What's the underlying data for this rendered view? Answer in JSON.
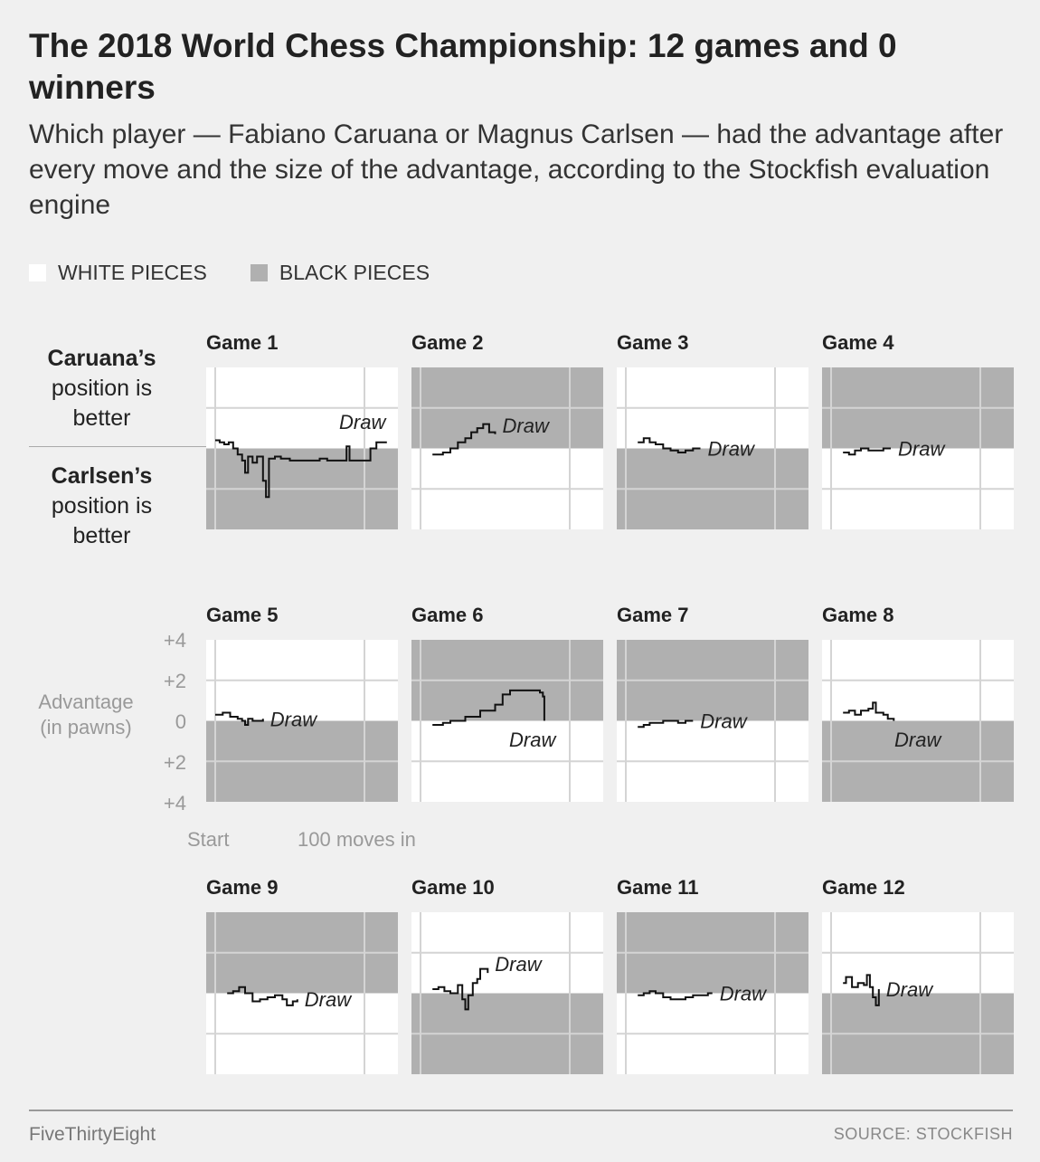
{
  "title": "The 2018 World Chess Championship: 12 games and 0 winners",
  "subtitle": "Which player — Fabiano Caruana or Magnus Carlsen — had the advantage after every move and the size of the advantage, according to the Stockfish evaluation engine",
  "legend": {
    "white_label": "WHITE PIECES",
    "black_label": "BLACK PIECES",
    "white_color": "#ffffff",
    "black_color": "#b0b0b0"
  },
  "side_labels": {
    "caruana_name": "Caruana’s",
    "caruana_rest_1": "position is",
    "caruana_rest_2": "better",
    "carlsen_name": "Carlsen’s",
    "carlsen_rest_1": "position is",
    "carlsen_rest_2": "better"
  },
  "axis": {
    "label_line1": "Advantage",
    "label_line2": "(in pawns)",
    "y_ticks": [
      "+4",
      "+2",
      "0",
      "+2",
      "+4"
    ],
    "x_start": "Start",
    "x_100": "100 moves in"
  },
  "footer": {
    "brand": "FiveThirtyEight",
    "source": "SOURCE: STOCKFISH"
  },
  "chart_data": {
    "type": "line",
    "title": "The 2018 World Chess Championship: 12 games and 0 winners",
    "xlabel": "",
    "ylabel": "Advantage (in pawns)",
    "xlim": [
      0,
      120
    ],
    "ylim": [
      -4,
      4
    ],
    "x_ticks": [
      "Start",
      "100 moves in"
    ],
    "y_ticks": [
      "+4",
      "+2",
      "0",
      "+2",
      "+4"
    ],
    "grid": true,
    "note": "positive y = Caruana's position is better; negative y = Carlsen's position is better",
    "games": [
      {
        "name": "Game 1",
        "caruana_pieces": "white",
        "result": "Draw",
        "points": [
          [
            0,
            0.4
          ],
          [
            3,
            0.3
          ],
          [
            6,
            0.2
          ],
          [
            9,
            0.3
          ],
          [
            12,
            0
          ],
          [
            15,
            -0.3
          ],
          [
            18,
            -0.6
          ],
          [
            20,
            -1.2
          ],
          [
            22,
            -0.4
          ],
          [
            25,
            -0.7
          ],
          [
            28,
            -0.4
          ],
          [
            32,
            -1.6
          ],
          [
            34,
            -2.4
          ],
          [
            36,
            -0.5
          ],
          [
            40,
            -0.4
          ],
          [
            44,
            -0.5
          ],
          [
            50,
            -0.6
          ],
          [
            60,
            -0.6
          ],
          [
            70,
            -0.5
          ],
          [
            75,
            -0.6
          ],
          [
            85,
            -0.6
          ],
          [
            88,
            0.1
          ],
          [
            90,
            -0.6
          ],
          [
            100,
            -0.6
          ],
          [
            104,
            0.0
          ],
          [
            108,
            0.3
          ],
          [
            115,
            0.3
          ]
        ]
      },
      {
        "name": "Game 2",
        "caruana_pieces": "black",
        "result": "Draw",
        "points": [
          [
            8,
            -0.3
          ],
          [
            15,
            -0.2
          ],
          [
            20,
            0.0
          ],
          [
            25,
            0.3
          ],
          [
            30,
            0.5
          ],
          [
            34,
            0.8
          ],
          [
            38,
            1.0
          ],
          [
            42,
            1.2
          ],
          [
            46,
            0.8
          ],
          [
            50,
            0.7
          ]
        ]
      },
      {
        "name": "Game 3",
        "caruana_pieces": "white",
        "result": "Draw",
        "points": [
          [
            8,
            0.3
          ],
          [
            12,
            0.5
          ],
          [
            16,
            0.3
          ],
          [
            20,
            0.2
          ],
          [
            25,
            0.0
          ],
          [
            30,
            -0.1
          ],
          [
            35,
            -0.2
          ],
          [
            40,
            -0.1
          ],
          [
            45,
            0.0
          ],
          [
            50,
            0.0
          ]
        ]
      },
      {
        "name": "Game 4",
        "caruana_pieces": "black",
        "result": "Draw",
        "points": [
          [
            8,
            -0.2
          ],
          [
            12,
            -0.3
          ],
          [
            16,
            -0.1
          ],
          [
            20,
            0.0
          ],
          [
            25,
            -0.1
          ],
          [
            30,
            -0.1
          ],
          [
            35,
            0.0
          ],
          [
            40,
            0.0
          ]
        ]
      },
      {
        "name": "Game 5",
        "caruana_pieces": "white",
        "result": "Draw",
        "points": [
          [
            0,
            0.3
          ],
          [
            5,
            0.4
          ],
          [
            10,
            0.2
          ],
          [
            15,
            0.1
          ],
          [
            18,
            0.0
          ],
          [
            20,
            -0.2
          ],
          [
            22,
            0.1
          ],
          [
            25,
            0.0
          ],
          [
            32,
            0.1
          ]
        ]
      },
      {
        "name": "Game 6",
        "caruana_pieces": "black",
        "result": "Draw",
        "points": [
          [
            8,
            -0.2
          ],
          [
            15,
            -0.1
          ],
          [
            20,
            0.0
          ],
          [
            30,
            0.2
          ],
          [
            40,
            0.5
          ],
          [
            50,
            0.8
          ],
          [
            55,
            1.3
          ],
          [
            60,
            1.5
          ],
          [
            70,
            1.5
          ],
          [
            80,
            1.4
          ],
          [
            82,
            1.2
          ],
          [
            83,
            0.0
          ]
        ]
      },
      {
        "name": "Game 7",
        "caruana_pieces": "black",
        "result": "Draw",
        "points": [
          [
            8,
            -0.3
          ],
          [
            12,
            -0.2
          ],
          [
            16,
            -0.1
          ],
          [
            20,
            -0.1
          ],
          [
            25,
            0.0
          ],
          [
            30,
            0.0
          ],
          [
            35,
            -0.1
          ],
          [
            40,
            0.0
          ],
          [
            45,
            0.0
          ]
        ]
      },
      {
        "name": "Game 8",
        "caruana_pieces": "white",
        "result": "Draw",
        "points": [
          [
            8,
            0.4
          ],
          [
            12,
            0.5
          ],
          [
            16,
            0.3
          ],
          [
            20,
            0.5
          ],
          [
            25,
            0.6
          ],
          [
            28,
            0.9
          ],
          [
            30,
            0.4
          ],
          [
            35,
            0.3
          ],
          [
            38,
            0.1
          ],
          [
            42,
            0.0
          ]
        ]
      },
      {
        "name": "Game 9",
        "caruana_pieces": "black",
        "result": "Draw",
        "points": [
          [
            8,
            0.0
          ],
          [
            12,
            0.1
          ],
          [
            16,
            0.3
          ],
          [
            20,
            0.0
          ],
          [
            25,
            -0.4
          ],
          [
            30,
            -0.3
          ],
          [
            35,
            -0.2
          ],
          [
            40,
            -0.1
          ],
          [
            45,
            -0.3
          ],
          [
            48,
            -0.6
          ],
          [
            52,
            -0.4
          ],
          [
            55,
            -0.3
          ]
        ]
      },
      {
        "name": "Game 10",
        "caruana_pieces": "white",
        "result": "Draw",
        "points": [
          [
            8,
            0.2
          ],
          [
            12,
            0.3
          ],
          [
            16,
            0.1
          ],
          [
            20,
            0.0
          ],
          [
            25,
            0.4
          ],
          [
            28,
            -0.3
          ],
          [
            30,
            -0.8
          ],
          [
            32,
            -0.1
          ],
          [
            35,
            0.5
          ],
          [
            38,
            0.7
          ],
          [
            40,
            1.2
          ],
          [
            45,
            1.0
          ]
        ]
      },
      {
        "name": "Game 11",
        "caruana_pieces": "black",
        "result": "Draw",
        "points": [
          [
            8,
            -0.1
          ],
          [
            12,
            0.0
          ],
          [
            16,
            0.1
          ],
          [
            20,
            0.0
          ],
          [
            25,
            -0.2
          ],
          [
            30,
            -0.3
          ],
          [
            35,
            -0.3
          ],
          [
            40,
            -0.2
          ],
          [
            45,
            -0.1
          ],
          [
            50,
            -0.1
          ],
          [
            55,
            0.0
          ],
          [
            58,
            0.0
          ]
        ]
      },
      {
        "name": "Game 12",
        "caruana_pieces": "white",
        "result": "Draw",
        "points": [
          [
            8,
            0.5
          ],
          [
            10,
            0.8
          ],
          [
            14,
            0.3
          ],
          [
            18,
            0.5
          ],
          [
            22,
            0.4
          ],
          [
            24,
            0.9
          ],
          [
            26,
            0.3
          ],
          [
            28,
            -0.2
          ],
          [
            30,
            -0.6
          ],
          [
            32,
            0.2
          ]
        ]
      }
    ]
  }
}
